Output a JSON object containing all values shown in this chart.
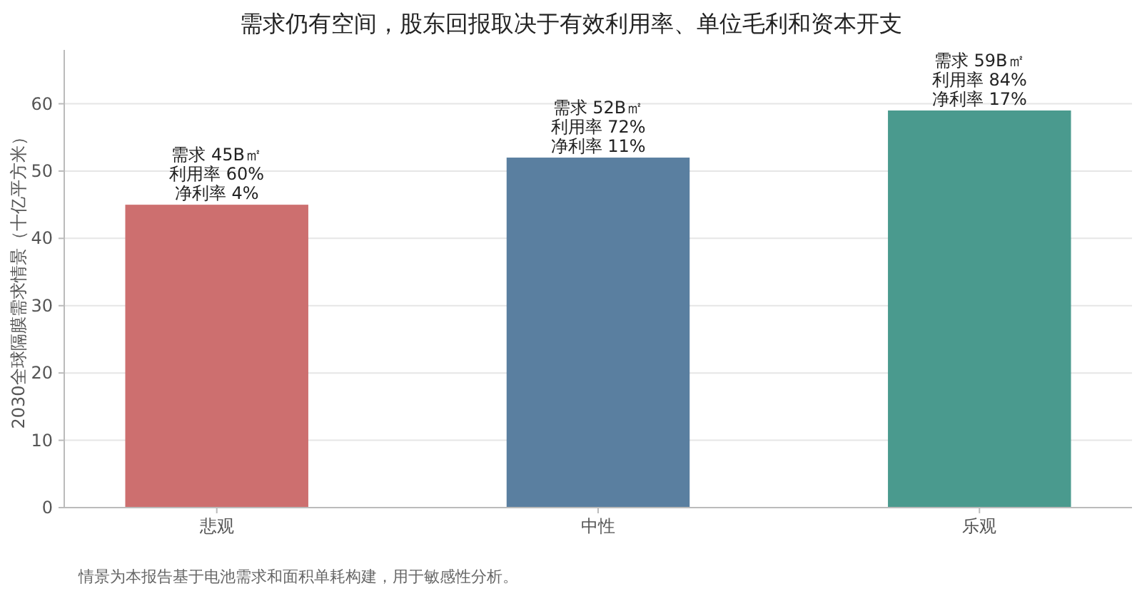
{
  "chart_data": {
    "type": "bar",
    "title": "需求仍有空间，股东回报取决于有效利用率、单位毛利和资本开支",
    "ylabel": "2030全球隔膜需求情景（十亿平方米）",
    "categories": [
      "悲观",
      "中性",
      "乐观"
    ],
    "values": [
      45,
      52,
      59
    ],
    "colors": [
      "#cd6f6f",
      "#5a7fa0",
      "#4a9a8e"
    ],
    "ylim": [
      0,
      68
    ],
    "yticks": [
      0,
      10,
      20,
      30,
      40,
      50,
      60
    ],
    "grid": "y",
    "annotations": [
      {
        "text": "需求 45B㎡",
        "x": "悲观",
        "y": 45
      },
      {
        "text": "利用率 60%",
        "x": "悲观",
        "y": 45
      },
      {
        "text": "净利率 4%",
        "x": "悲观",
        "y": 45
      },
      {
        "text": "需求 52B㎡",
        "x": "中性",
        "y": 52
      },
      {
        "text": "利用率 72%",
        "x": "中性",
        "y": 52
      },
      {
        "text": "净利率 11%",
        "x": "中性",
        "y": 52
      },
      {
        "text": "需求 59B㎡",
        "x": "乐观",
        "y": 59
      },
      {
        "text": "利用率 84%",
        "x": "乐观",
        "y": 59
      },
      {
        "text": "净利率 17%",
        "x": "乐观",
        "y": 59
      },
      "情景为本报告基于电池需求和面积单耗构建，用于敏感性分析。"
    ]
  }
}
